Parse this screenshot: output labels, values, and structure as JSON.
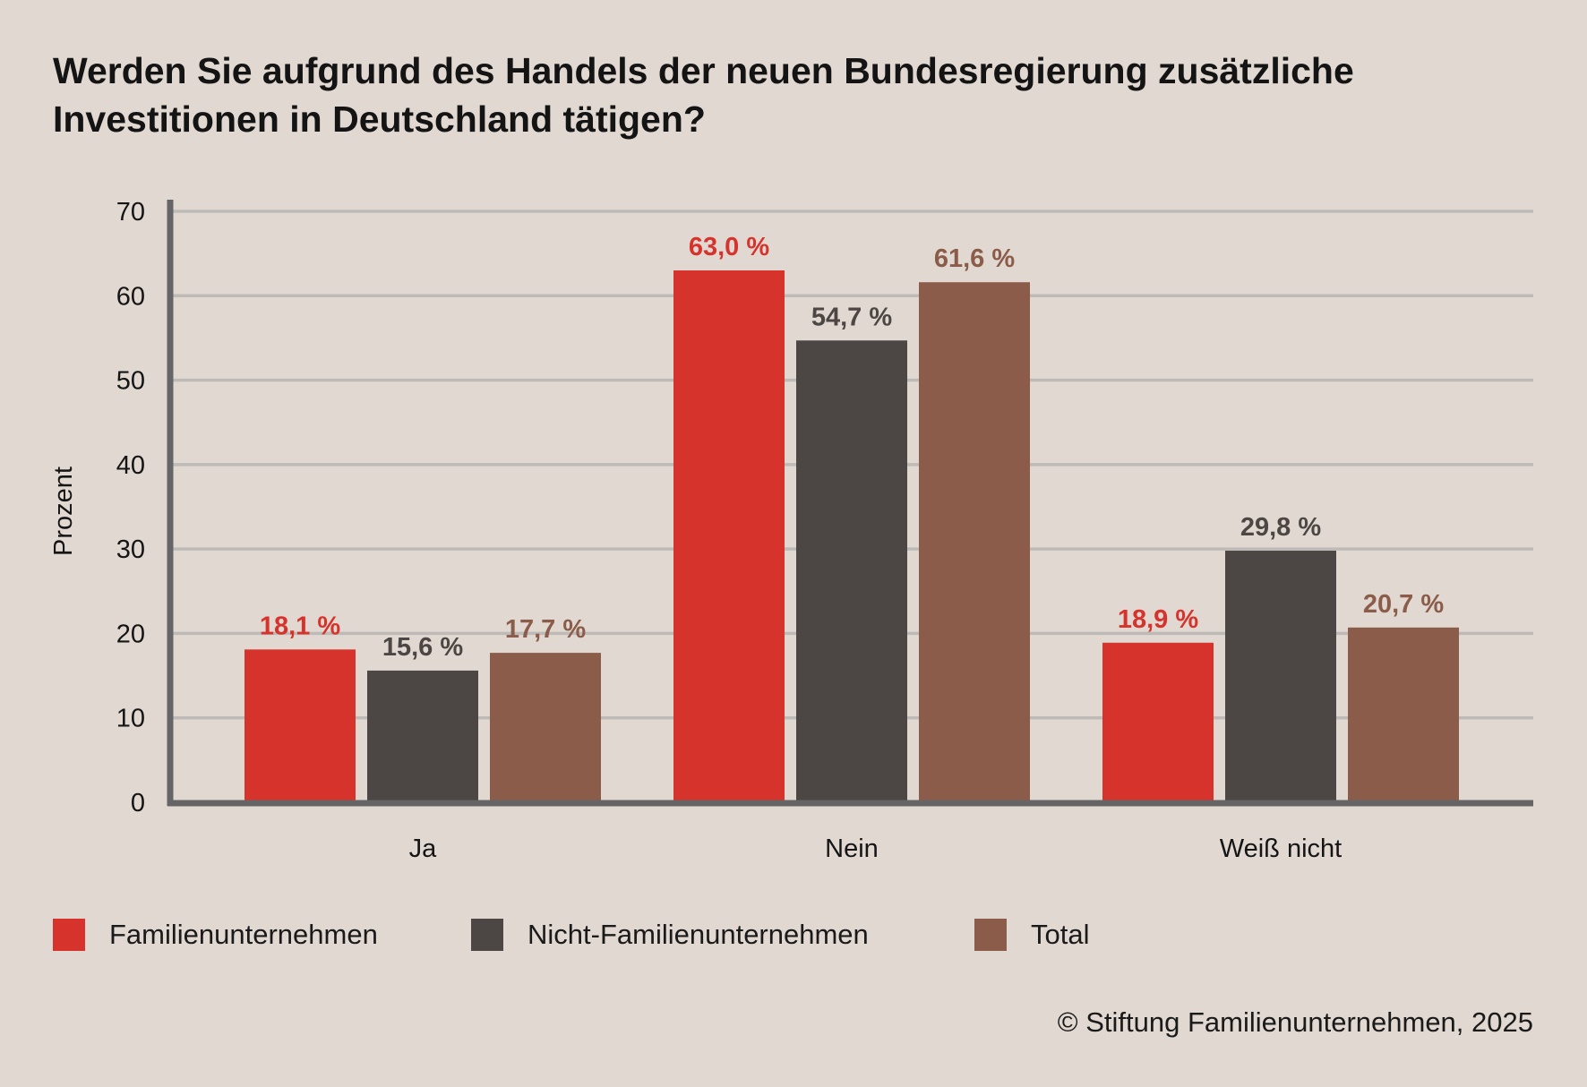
{
  "title": "Werden Sie aufgrund des Handels der neuen Bundesregierung zusätzliche Investitionen in Deutschland tätigen?",
  "source": "© Stiftung Familienunternehmen, 2025",
  "chart_data": {
    "type": "bar",
    "title": "Werden Sie aufgrund des Handels der neuen Bundesregierung zusätzliche Investitionen in Deutschland tätigen?",
    "xlabel": "",
    "ylabel": "Prozent",
    "ylim": [
      0,
      70
    ],
    "yticks": [
      0,
      10,
      20,
      30,
      40,
      50,
      60,
      70
    ],
    "grid": true,
    "legend_placement": "bottom-left",
    "categories": [
      "Ja",
      "Nein",
      "Weiß nicht"
    ],
    "series": [
      {
        "name": "Familienunternehmen",
        "color": "#d6332c",
        "values": [
          18.1,
          63.0,
          18.9
        ],
        "labels": [
          "18,1 %",
          "63,0 %",
          "18,9 %"
        ]
      },
      {
        "name": "Nicht-Familienunternehmen",
        "color": "#4c4744",
        "values": [
          15.6,
          54.7,
          29.8
        ],
        "labels": [
          "15,6 %",
          "54,7 %",
          "29,8 %"
        ]
      },
      {
        "name": "Total",
        "color": "#8a5c49",
        "values": [
          17.7,
          61.6,
          20.7
        ],
        "labels": [
          "17,7 %",
          "61,6 %",
          "20,7 %"
        ]
      }
    ]
  }
}
